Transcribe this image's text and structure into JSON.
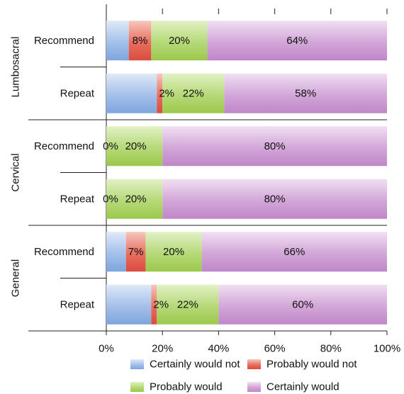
{
  "chart_data": {
    "type": "bar",
    "stacked": true,
    "orientation": "horizontal",
    "xlim": [
      0,
      100
    ],
    "ticks": [
      "0%",
      "20%",
      "40%",
      "60%",
      "80%",
      "100%"
    ],
    "groups": [
      {
        "name": "Lumbosacral",
        "rows": [
          {
            "label": "Recommend",
            "values": [
              8,
              8,
              20,
              64
            ],
            "data_labels": [
              "",
              "8%",
              "20%",
              "64%"
            ]
          },
          {
            "label": "Repeat",
            "values": [
              18,
              2,
              22,
              58
            ],
            "data_labels": [
              "",
              "2%",
              "22%",
              "58%"
            ]
          }
        ]
      },
      {
        "name": "Cervical",
        "rows": [
          {
            "label": "Recommend",
            "values": [
              0,
              0,
              20,
              80
            ],
            "data_labels": [
              "",
              "0%",
              "20%",
              "80%"
            ]
          },
          {
            "label": "Repeat",
            "values": [
              0,
              0,
              20,
              80
            ],
            "data_labels": [
              "",
              "0%",
              "20%",
              "80%"
            ]
          }
        ]
      },
      {
        "name": "General",
        "rows": [
          {
            "label": "Recommend",
            "values": [
              7,
              7,
              20,
              66
            ],
            "data_labels": [
              "",
              "7%",
              "20%",
              "66%"
            ]
          },
          {
            "label": "Repeat",
            "values": [
              16,
              2,
              22,
              60
            ],
            "data_labels": [
              "",
              "2%",
              "22%",
              "60%"
            ]
          }
        ]
      }
    ],
    "series": [
      {
        "name": "Certainly would not",
        "color": "#8aaee0"
      },
      {
        "name": "Probably would not",
        "color": "#e05c4e"
      },
      {
        "name": "Probably would",
        "color": "#a6cf58"
      },
      {
        "name": "Certainly would",
        "color": "#c88ed0"
      }
    ],
    "legend_position": "bottom",
    "grid": false
  }
}
